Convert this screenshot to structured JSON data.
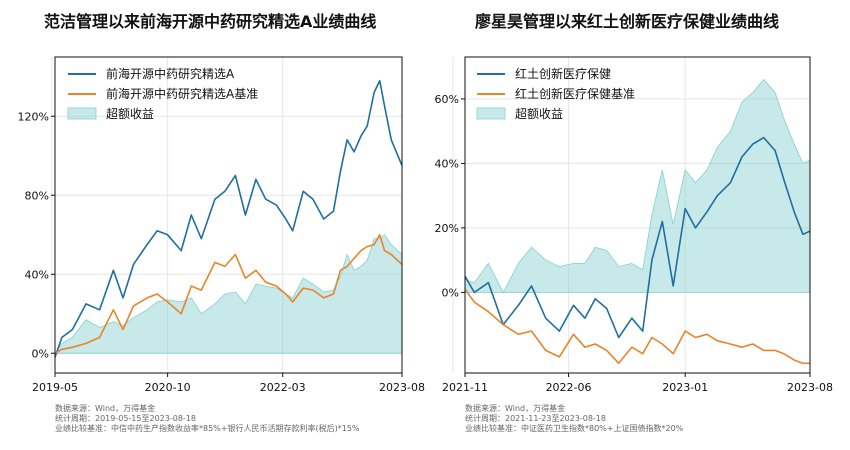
{
  "chart_data": [
    {
      "type": "line",
      "title": "范洁管理以来前海开源中药研究精选A业绩曲线",
      "x_ticks": [
        "2019-05",
        "2020-10",
        "2022-03",
        "2023-08"
      ],
      "y_ticks": [
        "0%",
        "40%",
        "80%",
        "120%"
      ],
      "xlim": [
        "2019-05-15",
        "2023-08-18"
      ],
      "ylim": [
        -10,
        150
      ],
      "grid": true,
      "legend_position": "top-left",
      "series": [
        {
          "name": "前海开源中药研究精选A",
          "color": "#1f6f9f",
          "x": [
            "2019-05-15",
            "2019-06-15",
            "2019-08-01",
            "2019-10-01",
            "2019-12-01",
            "2020-02-01",
            "2020-03-15",
            "2020-05-01",
            "2020-07-01",
            "2020-08-15",
            "2020-10-01",
            "2020-12-01",
            "2021-01-15",
            "2021-03-01",
            "2021-05-01",
            "2021-06-15",
            "2021-08-01",
            "2021-09-15",
            "2021-11-01",
            "2021-12-15",
            "2022-02-01",
            "2022-03-15",
            "2022-04-15",
            "2022-06-01",
            "2022-07-15",
            "2022-09-01",
            "2022-10-15",
            "2022-11-15",
            "2022-12-15",
            "2023-01-15",
            "2023-02-15",
            "2023-03-15",
            "2023-04-15",
            "2023-05-10",
            "2023-06-01",
            "2023-07-01",
            "2023-08-18"
          ],
          "values": [
            -2,
            8,
            12,
            25,
            22,
            42,
            28,
            45,
            55,
            62,
            60,
            52,
            70,
            58,
            78,
            82,
            90,
            70,
            88,
            78,
            75,
            68,
            62,
            82,
            78,
            68,
            72,
            92,
            108,
            102,
            110,
            115,
            132,
            138,
            125,
            108,
            95
          ]
        },
        {
          "name": "前海开源中药研究精选A基准",
          "color": "#e8842a",
          "x": [
            "2019-05-15",
            "2019-06-15",
            "2019-08-01",
            "2019-10-01",
            "2019-12-01",
            "2020-02-01",
            "2020-03-15",
            "2020-05-01",
            "2020-07-01",
            "2020-08-15",
            "2020-10-01",
            "2020-12-01",
            "2021-01-15",
            "2021-03-01",
            "2021-05-01",
            "2021-06-15",
            "2021-08-01",
            "2021-09-15",
            "2021-11-01",
            "2021-12-15",
            "2022-02-01",
            "2022-03-15",
            "2022-04-15",
            "2022-06-01",
            "2022-07-15",
            "2022-09-01",
            "2022-10-15",
            "2022-11-15",
            "2022-12-15",
            "2023-01-15",
            "2023-02-15",
            "2023-03-15",
            "2023-04-15",
            "2023-05-10",
            "2023-06-01",
            "2023-07-01",
            "2023-08-18"
          ],
          "values": [
            0,
            2,
            3,
            5,
            8,
            22,
            12,
            24,
            28,
            30,
            26,
            20,
            34,
            32,
            46,
            44,
            50,
            38,
            42,
            36,
            34,
            30,
            26,
            33,
            32,
            28,
            30,
            42,
            44,
            48,
            52,
            54,
            55,
            60,
            52,
            50,
            45
          ]
        },
        {
          "name": "超额收益",
          "color": "#86cfcf",
          "fill": true,
          "x": [
            "2019-05-15",
            "2019-06-15",
            "2019-08-01",
            "2019-10-01",
            "2019-12-01",
            "2020-02-01",
            "2020-03-15",
            "2020-05-01",
            "2020-07-01",
            "2020-08-15",
            "2020-10-01",
            "2020-12-01",
            "2021-01-15",
            "2021-03-01",
            "2021-05-01",
            "2021-06-15",
            "2021-08-01",
            "2021-09-15",
            "2021-11-01",
            "2021-12-15",
            "2022-02-01",
            "2022-03-15",
            "2022-04-15",
            "2022-06-01",
            "2022-07-15",
            "2022-09-01",
            "2022-10-15",
            "2022-11-15",
            "2022-12-15",
            "2023-01-15",
            "2023-02-15",
            "2023-03-15",
            "2023-04-15",
            "2023-05-10",
            "2023-06-01",
            "2023-07-01",
            "2023-08-18"
          ],
          "values": [
            0,
            5,
            8,
            17,
            13,
            16,
            14,
            18,
            22,
            26,
            27,
            26,
            28,
            20,
            25,
            30,
            31,
            25,
            35,
            34,
            33,
            30,
            28,
            38,
            35,
            31,
            32,
            39,
            50,
            42,
            44,
            47,
            58,
            58,
            60,
            55,
            50
          ]
        }
      ]
    },
    {
      "type": "line",
      "title": "廖星昊管理以来红土创新医疗保健业绩曲线",
      "x_ticks": [
        "2021-11",
        "2022-06",
        "2023-01",
        "2023-08"
      ],
      "y_ticks": [
        "0%",
        "20%",
        "40%",
        "60%"
      ],
      "xlim": [
        "2021-11-23",
        "2023-08-18"
      ],
      "ylim": [
        -25,
        73
      ],
      "grid": true,
      "legend_position": "top-left",
      "series": [
        {
          "name": "红土创新医疗保健",
          "color": "#1f6f9f",
          "x": [
            "2021-11-23",
            "2021-12-10",
            "2022-01-05",
            "2022-02-01",
            "2022-03-01",
            "2022-03-25",
            "2022-04-20",
            "2022-05-15",
            "2022-06-10",
            "2022-07-01",
            "2022-07-20",
            "2022-08-10",
            "2022-09-01",
            "2022-09-25",
            "2022-10-15",
            "2022-11-01",
            "2022-11-20",
            "2022-12-10",
            "2023-01-01",
            "2023-01-20",
            "2023-02-10",
            "2023-03-01",
            "2023-03-25",
            "2023-04-15",
            "2023-05-05",
            "2023-05-25",
            "2023-06-15",
            "2023-07-01",
            "2023-07-20",
            "2023-08-05",
            "2023-08-18"
          ],
          "values": [
            5,
            0,
            3,
            -10,
            -4,
            2,
            -8,
            -12,
            -4,
            -8,
            -2,
            -5,
            -14,
            -8,
            -12,
            10,
            22,
            2,
            26,
            20,
            25,
            30,
            34,
            42,
            46,
            48,
            44,
            35,
            25,
            18,
            19
          ]
        },
        {
          "name": "红土创新医疗保健基准",
          "color": "#e8842a",
          "x": [
            "2021-11-23",
            "2021-12-10",
            "2022-01-05",
            "2022-02-01",
            "2022-03-01",
            "2022-03-25",
            "2022-04-20",
            "2022-05-15",
            "2022-06-10",
            "2022-07-01",
            "2022-07-20",
            "2022-08-10",
            "2022-09-01",
            "2022-09-25",
            "2022-10-15",
            "2022-11-01",
            "2022-11-20",
            "2022-12-10",
            "2023-01-01",
            "2023-01-20",
            "2023-02-10",
            "2023-03-01",
            "2023-03-25",
            "2023-04-15",
            "2023-05-05",
            "2023-05-25",
            "2023-06-15",
            "2023-07-01",
            "2023-07-20",
            "2023-08-05",
            "2023-08-18"
          ],
          "values": [
            1,
            -3,
            -6,
            -10,
            -13,
            -12,
            -18,
            -20,
            -13,
            -17,
            -16,
            -18,
            -22,
            -17,
            -19,
            -14,
            -16,
            -19,
            -12,
            -14,
            -13,
            -15,
            -16,
            -17,
            -16,
            -18,
            -18,
            -19,
            -21,
            -22,
            -22
          ]
        },
        {
          "name": "超额收益",
          "color": "#86cfcf",
          "fill": true,
          "x": [
            "2021-11-23",
            "2021-12-10",
            "2022-01-05",
            "2022-02-01",
            "2022-03-01",
            "2022-03-25",
            "2022-04-20",
            "2022-05-15",
            "2022-06-10",
            "2022-07-01",
            "2022-07-20",
            "2022-08-10",
            "2022-09-01",
            "2022-09-25",
            "2022-10-15",
            "2022-11-01",
            "2022-11-20",
            "2022-12-10",
            "2023-01-01",
            "2023-01-20",
            "2023-02-10",
            "2023-03-01",
            "2023-03-25",
            "2023-04-15",
            "2023-05-05",
            "2023-05-25",
            "2023-06-15",
            "2023-07-01",
            "2023-07-20",
            "2023-08-05",
            "2023-08-18"
          ],
          "values": [
            4,
            3,
            9,
            0,
            9,
            14,
            10,
            8,
            9,
            9,
            14,
            13,
            8,
            9,
            7,
            24,
            38,
            21,
            38,
            34,
            38,
            45,
            50,
            59,
            62,
            66,
            62,
            54,
            46,
            40,
            41
          ]
        }
      ]
    }
  ],
  "notes": [
    [
      "数据来源：Wind，万得基金",
      "统计周期：2019-05-15至2023-08-18",
      "业绩比较基准：中信中药生产指数收益率*85%+银行人民币活期存款利率(税后)*15%"
    ],
    [
      "数据来源：Wind，万得基金",
      "统计周期：2021-11-23至2023-08-18",
      "业绩比较基准：中证医药卫生指数*80%+上证国债指数*20%"
    ]
  ]
}
